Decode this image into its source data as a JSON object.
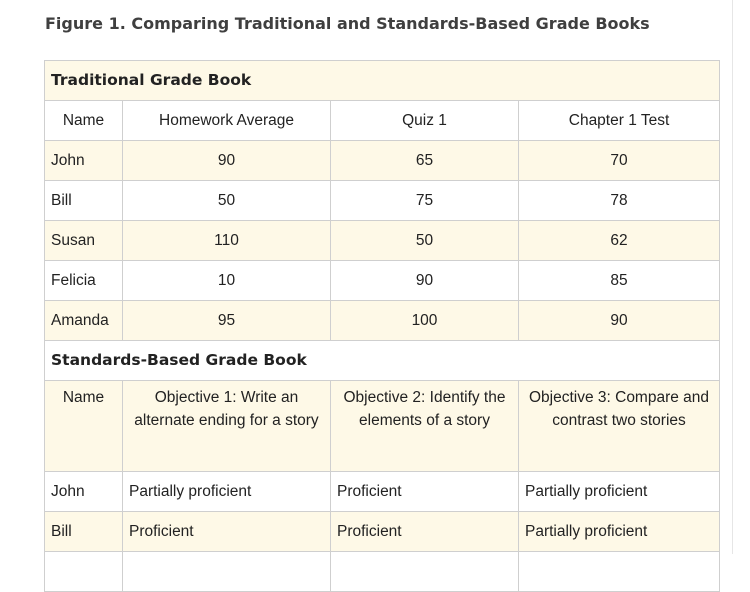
{
  "caption": "Figure 1. Comparing Traditional and Standards-Based Grade Books",
  "traditional": {
    "title": "Traditional Grade Book",
    "headers": [
      "Name",
      "Homework Average",
      "Quiz 1",
      "Chapter 1 Test"
    ],
    "rows": [
      [
        "John",
        "90",
        "65",
        "70"
      ],
      [
        "Bill",
        "50",
        "75",
        "78"
      ],
      [
        "Susan",
        "110",
        "50",
        "62"
      ],
      [
        "Felicia",
        "10",
        "90",
        "85"
      ],
      [
        "Amanda",
        "95",
        "100",
        "90"
      ]
    ]
  },
  "standards": {
    "title": "Standards-Based Grade Book",
    "headers": [
      "Name",
      "Objective 1: Write an alternate ending for a story",
      "Objective 2: Identify the elements of a story",
      "Objective 3: Compare and contrast two stories"
    ],
    "rows": [
      [
        "John",
        "Partially proficient",
        "Proficient",
        "Partially proficient"
      ],
      [
        "Bill",
        "Proficient",
        "Proficient",
        "Partially proficient"
      ]
    ]
  }
}
